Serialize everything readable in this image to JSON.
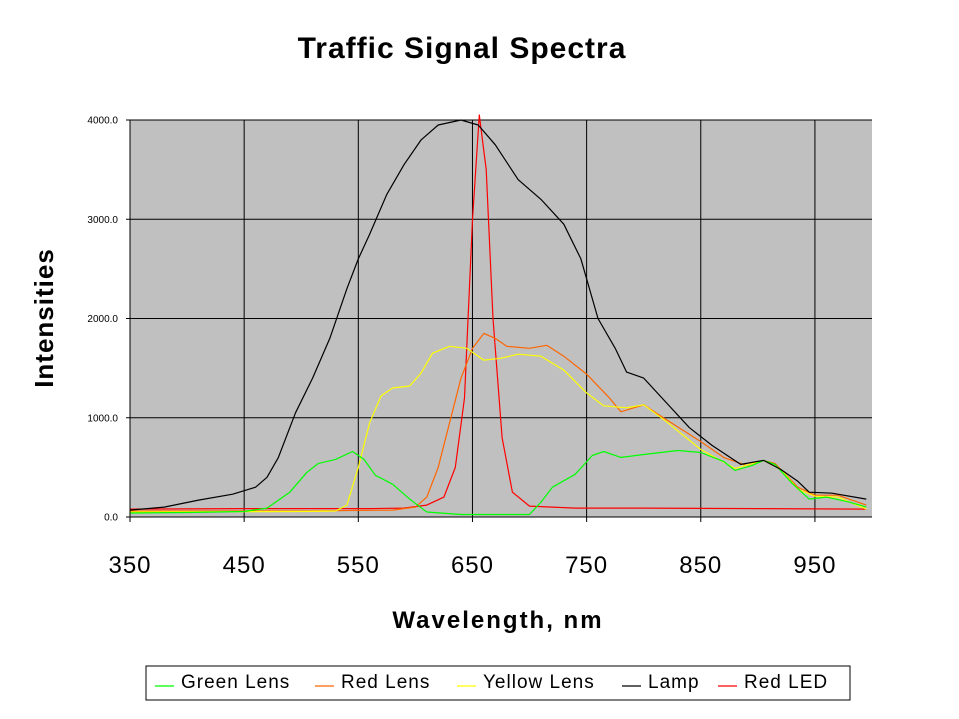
{
  "chart_data": {
    "type": "line",
    "title": "Traffic Signal Spectra",
    "xlabel": "Wavelength, nm",
    "ylabel": "Intensities",
    "xlim": [
      350,
      1000
    ],
    "ylim": [
      0,
      4000
    ],
    "x_ticks": [
      "350",
      "450",
      "550",
      "650",
      "750",
      "850",
      "950"
    ],
    "x_tick_values": [
      350,
      450,
      550,
      650,
      750,
      850,
      950
    ],
    "y_ticks": [
      "0.0",
      "1000.0",
      "2000.0",
      "3000.0",
      "4000.0"
    ],
    "y_tick_values": [
      0,
      1000,
      2000,
      3000,
      4000
    ],
    "grid": true,
    "plot_background": "#c0c0c0",
    "legend_position": "bottom",
    "series": [
      {
        "name": "Green Lens",
        "color": "#00ff00",
        "points": [
          [
            350,
            40
          ],
          [
            400,
            45
          ],
          [
            450,
            55
          ],
          [
            470,
            90
          ],
          [
            490,
            250
          ],
          [
            505,
            450
          ],
          [
            515,
            540
          ],
          [
            530,
            580
          ],
          [
            545,
            660
          ],
          [
            555,
            580
          ],
          [
            565,
            420
          ],
          [
            580,
            330
          ],
          [
            595,
            180
          ],
          [
            610,
            50
          ],
          [
            640,
            25
          ],
          [
            700,
            25
          ],
          [
            710,
            150
          ],
          [
            720,
            300
          ],
          [
            740,
            430
          ],
          [
            755,
            620
          ],
          [
            765,
            660
          ],
          [
            780,
            600
          ],
          [
            800,
            630
          ],
          [
            830,
            670
          ],
          [
            850,
            650
          ],
          [
            870,
            560
          ],
          [
            880,
            470
          ],
          [
            895,
            520
          ],
          [
            905,
            570
          ],
          [
            915,
            530
          ],
          [
            930,
            340
          ],
          [
            945,
            180
          ],
          [
            960,
            200
          ],
          [
            980,
            150
          ],
          [
            995,
            100
          ]
        ]
      },
      {
        "name": "Red Lens",
        "color": "#ff6600",
        "points": [
          [
            350,
            60
          ],
          [
            500,
            60
          ],
          [
            580,
            70
          ],
          [
            600,
            100
          ],
          [
            610,
            200
          ],
          [
            620,
            500
          ],
          [
            630,
            950
          ],
          [
            640,
            1400
          ],
          [
            650,
            1700
          ],
          [
            660,
            1850
          ],
          [
            670,
            1800
          ],
          [
            680,
            1720
          ],
          [
            700,
            1700
          ],
          [
            715,
            1730
          ],
          [
            730,
            1620
          ],
          [
            750,
            1440
          ],
          [
            770,
            1200
          ],
          [
            780,
            1060
          ],
          [
            800,
            1130
          ],
          [
            820,
            980
          ],
          [
            850,
            760
          ],
          [
            870,
            600
          ],
          [
            890,
            520
          ],
          [
            905,
            570
          ],
          [
            915,
            540
          ],
          [
            935,
            300
          ],
          [
            950,
            220
          ],
          [
            970,
            220
          ],
          [
            995,
            120
          ]
        ]
      },
      {
        "name": "Yellow Lens",
        "color": "#ffff00",
        "points": [
          [
            350,
            50
          ],
          [
            500,
            55
          ],
          [
            530,
            60
          ],
          [
            540,
            120
          ],
          [
            550,
            500
          ],
          [
            560,
            950
          ],
          [
            570,
            1220
          ],
          [
            580,
            1300
          ],
          [
            595,
            1320
          ],
          [
            605,
            1450
          ],
          [
            615,
            1650
          ],
          [
            630,
            1720
          ],
          [
            645,
            1700
          ],
          [
            660,
            1580
          ],
          [
            675,
            1600
          ],
          [
            690,
            1640
          ],
          [
            710,
            1620
          ],
          [
            730,
            1480
          ],
          [
            750,
            1250
          ],
          [
            765,
            1120
          ],
          [
            785,
            1100
          ],
          [
            800,
            1130
          ],
          [
            820,
            960
          ],
          [
            850,
            680
          ],
          [
            880,
            490
          ],
          [
            905,
            570
          ],
          [
            920,
            480
          ],
          [
            935,
            280
          ],
          [
            950,
            210
          ],
          [
            970,
            200
          ],
          [
            995,
            80
          ]
        ]
      },
      {
        "name": "Lamp",
        "color": "#000000",
        "points": [
          [
            350,
            70
          ],
          [
            380,
            100
          ],
          [
            410,
            170
          ],
          [
            440,
            230
          ],
          [
            460,
            300
          ],
          [
            470,
            400
          ],
          [
            480,
            600
          ],
          [
            495,
            1050
          ],
          [
            510,
            1400
          ],
          [
            525,
            1800
          ],
          [
            540,
            2300
          ],
          [
            550,
            2600
          ],
          [
            560,
            2850
          ],
          [
            575,
            3250
          ],
          [
            590,
            3550
          ],
          [
            605,
            3800
          ],
          [
            620,
            3950
          ],
          [
            640,
            4000
          ],
          [
            655,
            3950
          ],
          [
            670,
            3750
          ],
          [
            690,
            3400
          ],
          [
            710,
            3200
          ],
          [
            730,
            2950
          ],
          [
            745,
            2600
          ],
          [
            760,
            2000
          ],
          [
            775,
            1700
          ],
          [
            785,
            1460
          ],
          [
            800,
            1400
          ],
          [
            820,
            1150
          ],
          [
            840,
            900
          ],
          [
            860,
            720
          ],
          [
            885,
            530
          ],
          [
            905,
            570
          ],
          [
            920,
            480
          ],
          [
            935,
            360
          ],
          [
            945,
            250
          ],
          [
            965,
            240
          ],
          [
            995,
            180
          ]
        ]
      },
      {
        "name": "Red LED",
        "color": "#ff0000",
        "points": [
          [
            350,
            80
          ],
          [
            450,
            85
          ],
          [
            560,
            85
          ],
          [
            590,
            90
          ],
          [
            610,
            120
          ],
          [
            625,
            200
          ],
          [
            635,
            500
          ],
          [
            643,
            1200
          ],
          [
            650,
            3000
          ],
          [
            656,
            4050
          ],
          [
            662,
            3500
          ],
          [
            668,
            2000
          ],
          [
            676,
            800
          ],
          [
            685,
            250
          ],
          [
            700,
            110
          ],
          [
            740,
            90
          ],
          [
            800,
            90
          ],
          [
            900,
            85
          ],
          [
            995,
            80
          ]
        ]
      }
    ]
  }
}
